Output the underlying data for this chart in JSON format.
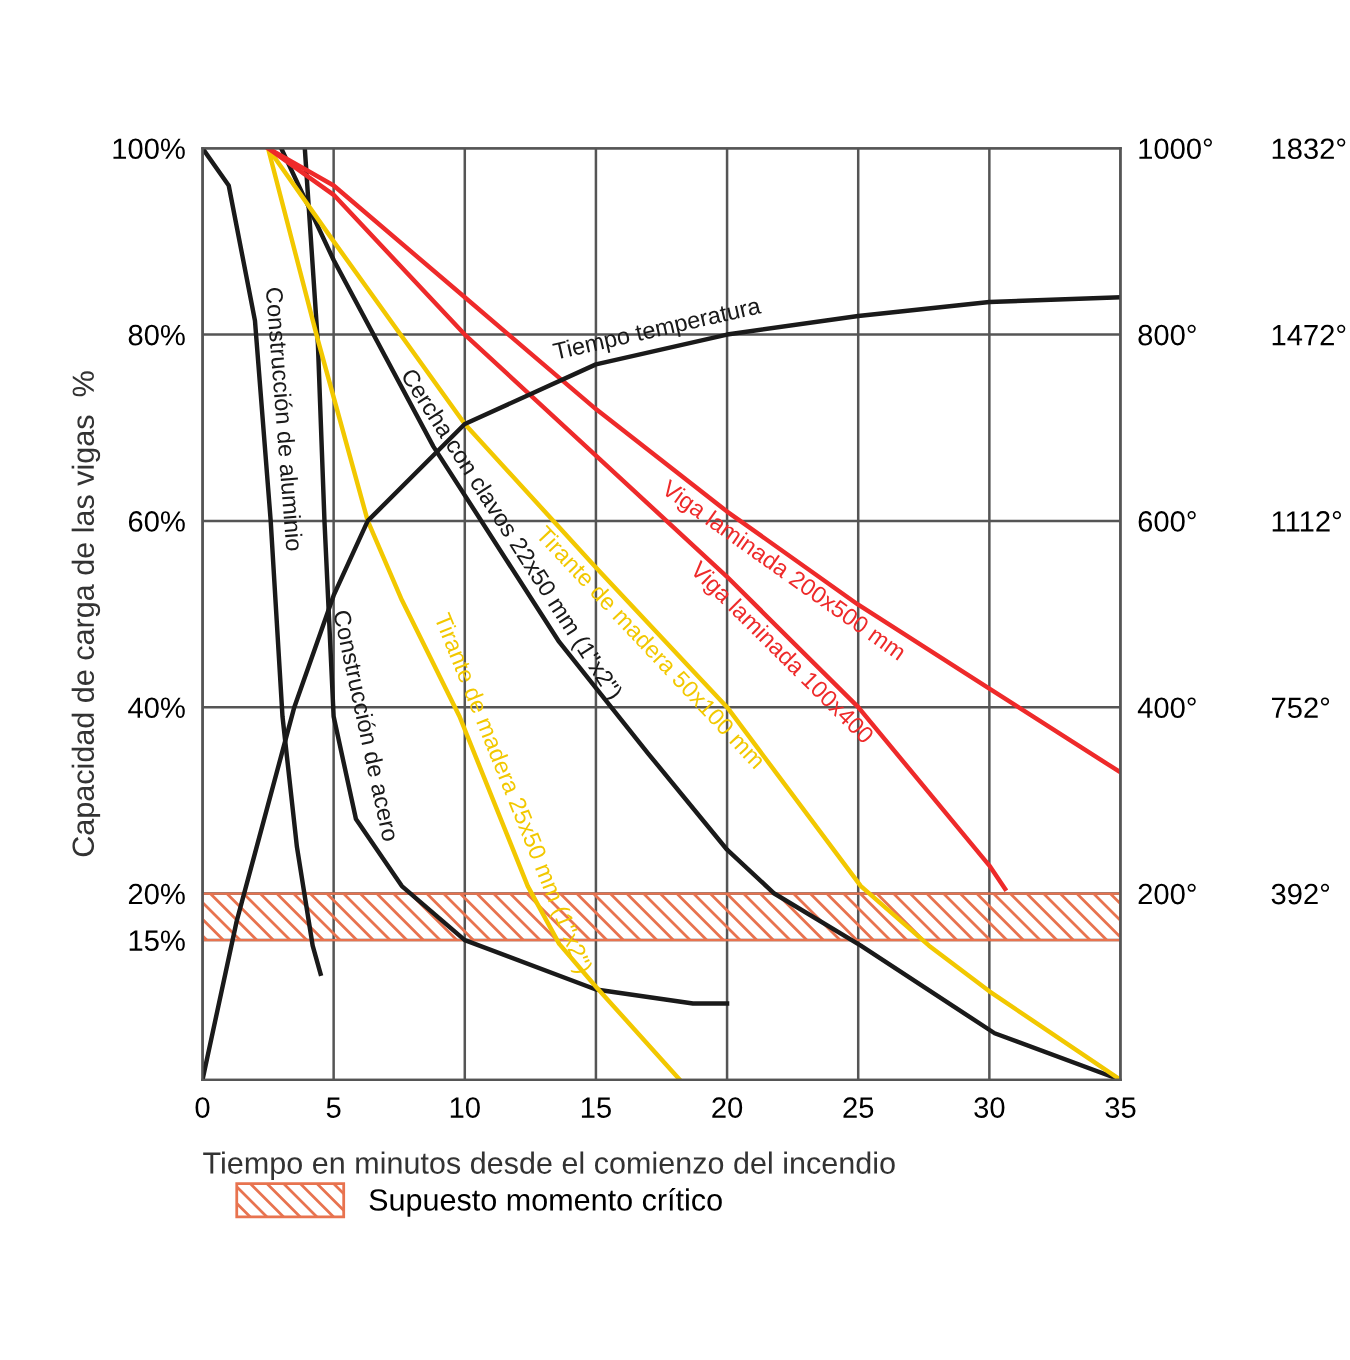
{
  "chart_data": {
    "type": "line",
    "xlabel": "Tiempo en minutos desde el comienzo del incendio",
    "ylabel": "Capacidad de carga de las vigas  %",
    "xlim": [
      0,
      35
    ],
    "xticks": [
      0,
      5,
      10,
      15,
      20,
      25,
      30,
      35
    ],
    "ylim": [
      0,
      100
    ],
    "yticks": [
      {
        "value": 15,
        "label": "15%"
      },
      {
        "value": 20,
        "label": "20%"
      },
      {
        "value": 40,
        "label": "40%"
      },
      {
        "value": 60,
        "label": "60%"
      },
      {
        "value": 80,
        "label": "80%"
      },
      {
        "value": 100,
        "label": "100%"
      }
    ],
    "y2lim": [
      0,
      1000
    ],
    "y2ticks": [
      {
        "value": 200,
        "label": "200°"
      },
      {
        "value": 400,
        "label": "400°"
      },
      {
        "value": 600,
        "label": "600°"
      },
      {
        "value": 800,
        "label": "800°"
      },
      {
        "value": 1000,
        "label": "1000°"
      }
    ],
    "y3lim": [
      32,
      1832
    ],
    "y3ticks": [
      {
        "value": 392,
        "label": "392°"
      },
      {
        "value": 752,
        "label": "752°"
      },
      {
        "value": 1112,
        "label": "1112°"
      },
      {
        "value": 1472,
        "label": "1472°"
      },
      {
        "value": 1832,
        "label": "1832°"
      }
    ],
    "grid": true,
    "legend": "bottom",
    "bands": [
      {
        "axis": "y",
        "from": 15,
        "to": 20,
        "label": "Supuesto momento crítico",
        "color": "#e8734f"
      }
    ],
    "series": [
      {
        "name": "Construcción de aluminio",
        "color": "#1a1a1a",
        "x": [
          0,
          1,
          2,
          2.6,
          3.05,
          3.6,
          4.2,
          4.5
        ],
        "values": [
          100,
          96,
          81.5,
          60,
          39,
          25,
          14.4,
          11.4
        ]
      },
      {
        "name": "Construcción de acero",
        "color": "#1a1a1a",
        "x": [
          3.9,
          4.4,
          4.65,
          5,
          5.85,
          7.6,
          10,
          15,
          18.7,
          20
        ],
        "values": [
          100,
          79,
          60,
          39,
          28,
          20.8,
          15,
          9.7,
          8.2,
          8.2
        ]
      },
      {
        "name": "Tirante de madera 25x50 mm (1\"x2\")",
        "color": "#f2c800",
        "x": [
          2.5,
          4.4,
          6.3,
          7.6,
          9.8,
          12.4,
          13.6,
          15,
          18.2
        ],
        "values": [
          100,
          79.4,
          60,
          51.5,
          39,
          20.8,
          14.6,
          10,
          0
        ]
      },
      {
        "name": "Cercha con clavos 22x50 mm (1\"x2\")",
        "color": "#1a1a1a",
        "x": [
          3,
          5,
          8.8,
          13.6,
          17,
          20,
          21.8,
          25.1,
          30.2,
          35
        ],
        "values": [
          100,
          88,
          68,
          47,
          35,
          24.7,
          20,
          14.4,
          5,
          0
        ]
      },
      {
        "name": "Tirante de madera 50x100 mm",
        "color": "#f2c800",
        "x": [
          2.5,
          5,
          10,
          15,
          20,
          25.1,
          27.7,
          30,
          35
        ],
        "values": [
          100,
          90,
          70.4,
          55,
          40,
          20.8,
          14.4,
          9.5,
          0
        ]
      },
      {
        "name": "Viga laminada 100x400",
        "color": "#ee2a2a",
        "x": [
          2.5,
          5,
          10,
          15,
          20,
          25,
          30,
          30.6
        ],
        "values": [
          100,
          95,
          80,
          67,
          54,
          40,
          23,
          20.5
        ]
      },
      {
        "name": "Viga laminada 200x500 mm",
        "color": "#ee2a2a",
        "x": [
          2.5,
          5,
          10,
          15,
          20,
          25,
          30,
          35
        ],
        "values": [
          100,
          96,
          84,
          72,
          61,
          51,
          42,
          33
        ]
      },
      {
        "name": "Tiempo temperatura",
        "color": "#1a1a1a",
        "axis": "y2",
        "x": [
          0,
          1.3,
          3.5,
          5,
          6.3,
          10,
          15,
          20,
          25,
          30,
          35
        ],
        "values": [
          0,
          170,
          400,
          520,
          600,
          704,
          768,
          800,
          820,
          835,
          840
        ]
      }
    ]
  }
}
